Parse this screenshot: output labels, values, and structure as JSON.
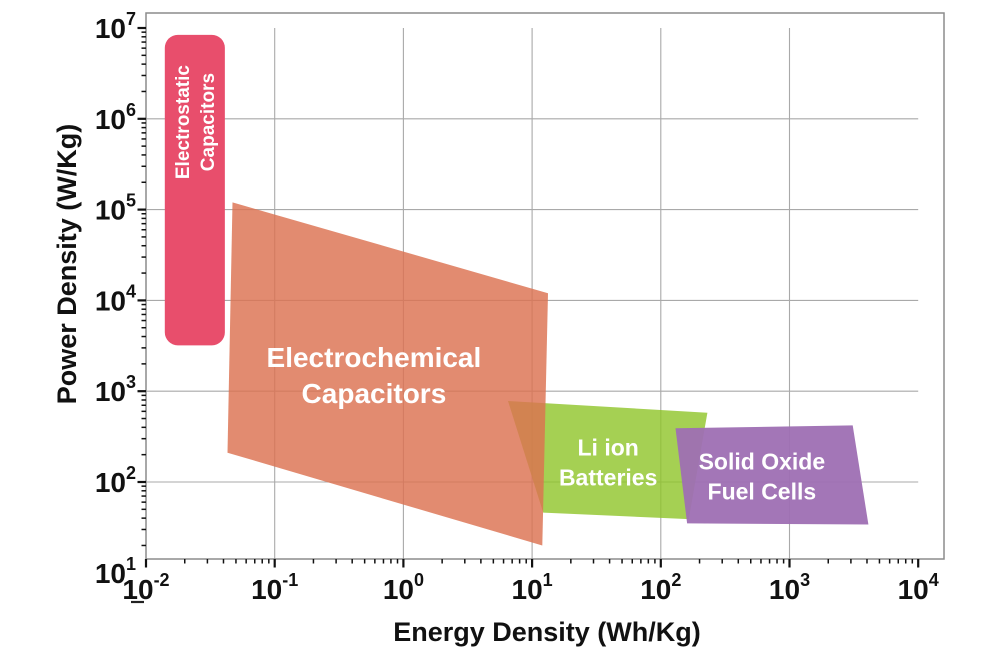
{
  "chart_data": {
    "type": "area",
    "chart_kind": "ragone-plot-technology-regions",
    "title": "",
    "xlabel": "Energy Density (Wh/Kg)",
    "ylabel": "Power Density (W/Kg)",
    "x_axis": {
      "scale": "log10",
      "unit": "Wh/Kg",
      "tick_exponents": [
        -2,
        -1,
        0,
        1,
        2,
        3,
        4
      ],
      "tick_labels": [
        "10^-2",
        "10^-1",
        "10^0",
        "10^1",
        "10^2",
        "10^3",
        "10^4"
      ],
      "range_exponents": [
        -2,
        4.2
      ]
    },
    "y_axis": {
      "scale": "log10",
      "unit": "W/Kg",
      "tick_exponents": [
        1,
        2,
        3,
        4,
        5,
        6,
        7
      ],
      "tick_labels": [
        "10^1",
        "10^2",
        "10^3",
        "10^4",
        "10^5",
        "10^6",
        "10^7"
      ],
      "range_exponents": [
        1.15,
        7.17
      ]
    },
    "grid": {
      "show": true,
      "color": "#a9a9a9",
      "vertical_at_exponents": [
        -1,
        0,
        1,
        2,
        3
      ],
      "horizontal_at_exponents": [
        2,
        3,
        4,
        5,
        6
      ]
    },
    "frame_color": "#8c8c8c",
    "tick_color": "#111111",
    "tick_label_color": "#111111",
    "region_label_color": "#ffffff",
    "stray_underline_below_first_x_label": true,
    "regions": [
      {
        "id": "li-ion-batteries",
        "name": "Li ion Batteries",
        "label_lines": [
          "Li ion",
          "Batteries"
        ],
        "shape": "polygon",
        "polygon_x_whkg_y_wkg": [
          [
            6.5,
            780
          ],
          [
            230,
            580
          ],
          [
            165,
            39
          ],
          [
            12.2,
            46
          ]
        ],
        "color": "#8ec428",
        "opacity": 0.8,
        "label_center": [
          39,
          165
        ],
        "label_rotation": 0,
        "label_font_px": 23
      },
      {
        "id": "solid-oxide-fuel-cells",
        "name": "Solid Oxide Fuel Cells",
        "label_lines": [
          "Solid Oxide",
          "Fuel Cells"
        ],
        "shape": "polygon",
        "polygon_x_whkg_y_wkg": [
          [
            130,
            390
          ],
          [
            3100,
            420
          ],
          [
            4100,
            34
          ],
          [
            160,
            35
          ]
        ],
        "color": "#9e6fb3",
        "opacity": 0.95,
        "label_center": [
          610,
          115
        ],
        "label_rotation": 0,
        "label_font_px": 23
      },
      {
        "id": "electrochemical-capacitors",
        "name": "Electrochemical Capacitors",
        "label_lines": [
          "Electrochemical",
          "Capacitors"
        ],
        "shape": "polygon",
        "polygon_x_whkg_y_wkg": [
          [
            0.047,
            120000
          ],
          [
            13.3,
            12000
          ],
          [
            12,
            20
          ],
          [
            0.043,
            210
          ]
        ],
        "color": "#dc7151",
        "opacity": 0.82,
        "label_center": [
          0.59,
          1500
        ],
        "label_rotation": 0,
        "label_font_px": 28
      },
      {
        "id": "electrostatic-capacitors",
        "name": "Electrostatic Capacitors",
        "label_lines": [
          "Electrostatic",
          "Capacitors"
        ],
        "shape": "rounded-rect",
        "x_range_whkg": [
          0.014,
          0.041
        ],
        "y_range_wkg": [
          3200,
          8400000
        ],
        "color": "#e84e6c",
        "opacity": 1,
        "label_center": [
          0.024,
          920000
        ],
        "label_rotation": -90,
        "label_font_px": 19
      }
    ]
  }
}
